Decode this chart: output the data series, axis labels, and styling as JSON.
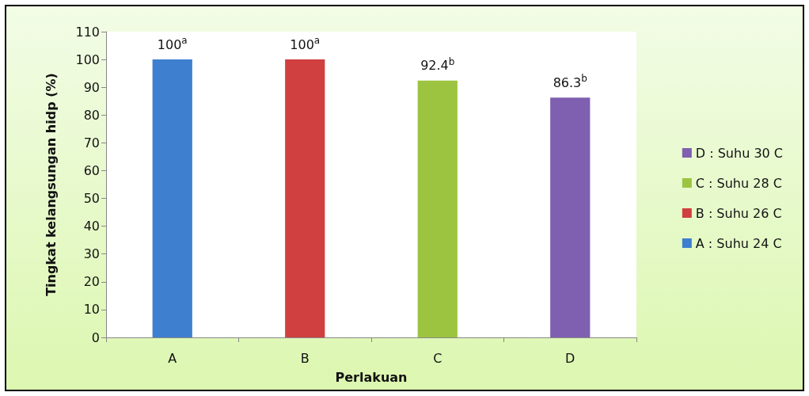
{
  "chart_data": {
    "type": "bar",
    "ylabel": "Tingkat kelangsungan hidp (%)",
    "xlabel": "Perlakuan",
    "categories": [
      "A",
      "B",
      "C",
      "D"
    ],
    "stacked": true,
    "ylim": [
      0,
      110
    ],
    "yticks": [
      0,
      10,
      20,
      30,
      40,
      50,
      60,
      70,
      80,
      90,
      100,
      110
    ],
    "grid": false,
    "legend": "right",
    "series": [
      {
        "name": "A : Suhu 24 C",
        "color": "#3f7fcf",
        "values": [
          100,
          null,
          null,
          null
        ],
        "value_labels": [
          "100$^{a}$",
          null,
          null,
          null
        ]
      },
      {
        "name": "B : Suhu 26 C",
        "color": "#d04040",
        "values": [
          null,
          100,
          null,
          null
        ],
        "value_labels": [
          null,
          "100$^{a}$",
          null,
          null
        ]
      },
      {
        "name": "C : Suhu 28 C",
        "color": "#9cc440",
        "values": [
          null,
          null,
          92.4,
          null
        ],
        "value_labels": [
          null,
          null,
          "92.4$^{b}$",
          null
        ]
      },
      {
        "name": "D : Suhu 30 C",
        "color": "#7f5fb0",
        "values": [
          null,
          null,
          null,
          86.3
        ],
        "value_labels": [
          null,
          null,
          null,
          "86.3$^{b}$"
        ]
      }
    ]
  }
}
